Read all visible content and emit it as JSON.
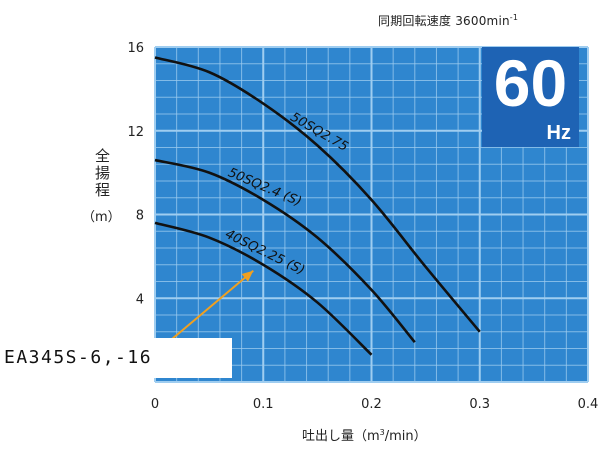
{
  "speed_note": {
    "prefix": "同期回転速度 3600min",
    "sup": "-1"
  },
  "frequency_badge": {
    "value": "60",
    "unit": "Hz",
    "color": "#1e63b4"
  },
  "y_axis_label": "全揚程",
  "y_axis_unit": "（m）",
  "x_axis_label": {
    "prefix": "吐出し量（m",
    "sup": "3",
    "suffix": "/min）"
  },
  "model_label": "EA345S-6,-16",
  "colors": {
    "plot_background": "#2f86cf",
    "grid_line": "#9fcdf0",
    "curve": "#111111",
    "arrow": "#f0a020"
  },
  "chart_data": {
    "type": "line",
    "title": "",
    "xlabel": "吐出し量（m3/min）",
    "ylabel": "全揚程（m）",
    "xlim": [
      0,
      0.4
    ],
    "ylim": [
      0,
      16
    ],
    "xticks": [
      "0",
      "0.1",
      "0.2",
      "0.3",
      "0.4"
    ],
    "yticks": [
      "4",
      "8",
      "12",
      "16"
    ],
    "grid": true,
    "series": [
      {
        "name": "50SQ2.75",
        "x": [
          0,
          0.05,
          0.1,
          0.15,
          0.2,
          0.25,
          0.3
        ],
        "y": [
          15.5,
          14.8,
          13.3,
          11.3,
          8.7,
          5.5,
          2.4
        ]
      },
      {
        "name": "50SQ2.4 (S)",
        "x": [
          0,
          0.05,
          0.1,
          0.15,
          0.2,
          0.24
        ],
        "y": [
          10.6,
          10.0,
          8.7,
          6.9,
          4.4,
          1.9
        ]
      },
      {
        "name": "40SQ2.25 (S)",
        "x": [
          0,
          0.05,
          0.1,
          0.15,
          0.2
        ],
        "y": [
          7.6,
          6.9,
          5.6,
          3.8,
          1.3
        ]
      }
    ],
    "annotation": {
      "text": "EA345S-6,-16",
      "points_to_x": 0.1,
      "points_to_y": 5.6
    }
  }
}
